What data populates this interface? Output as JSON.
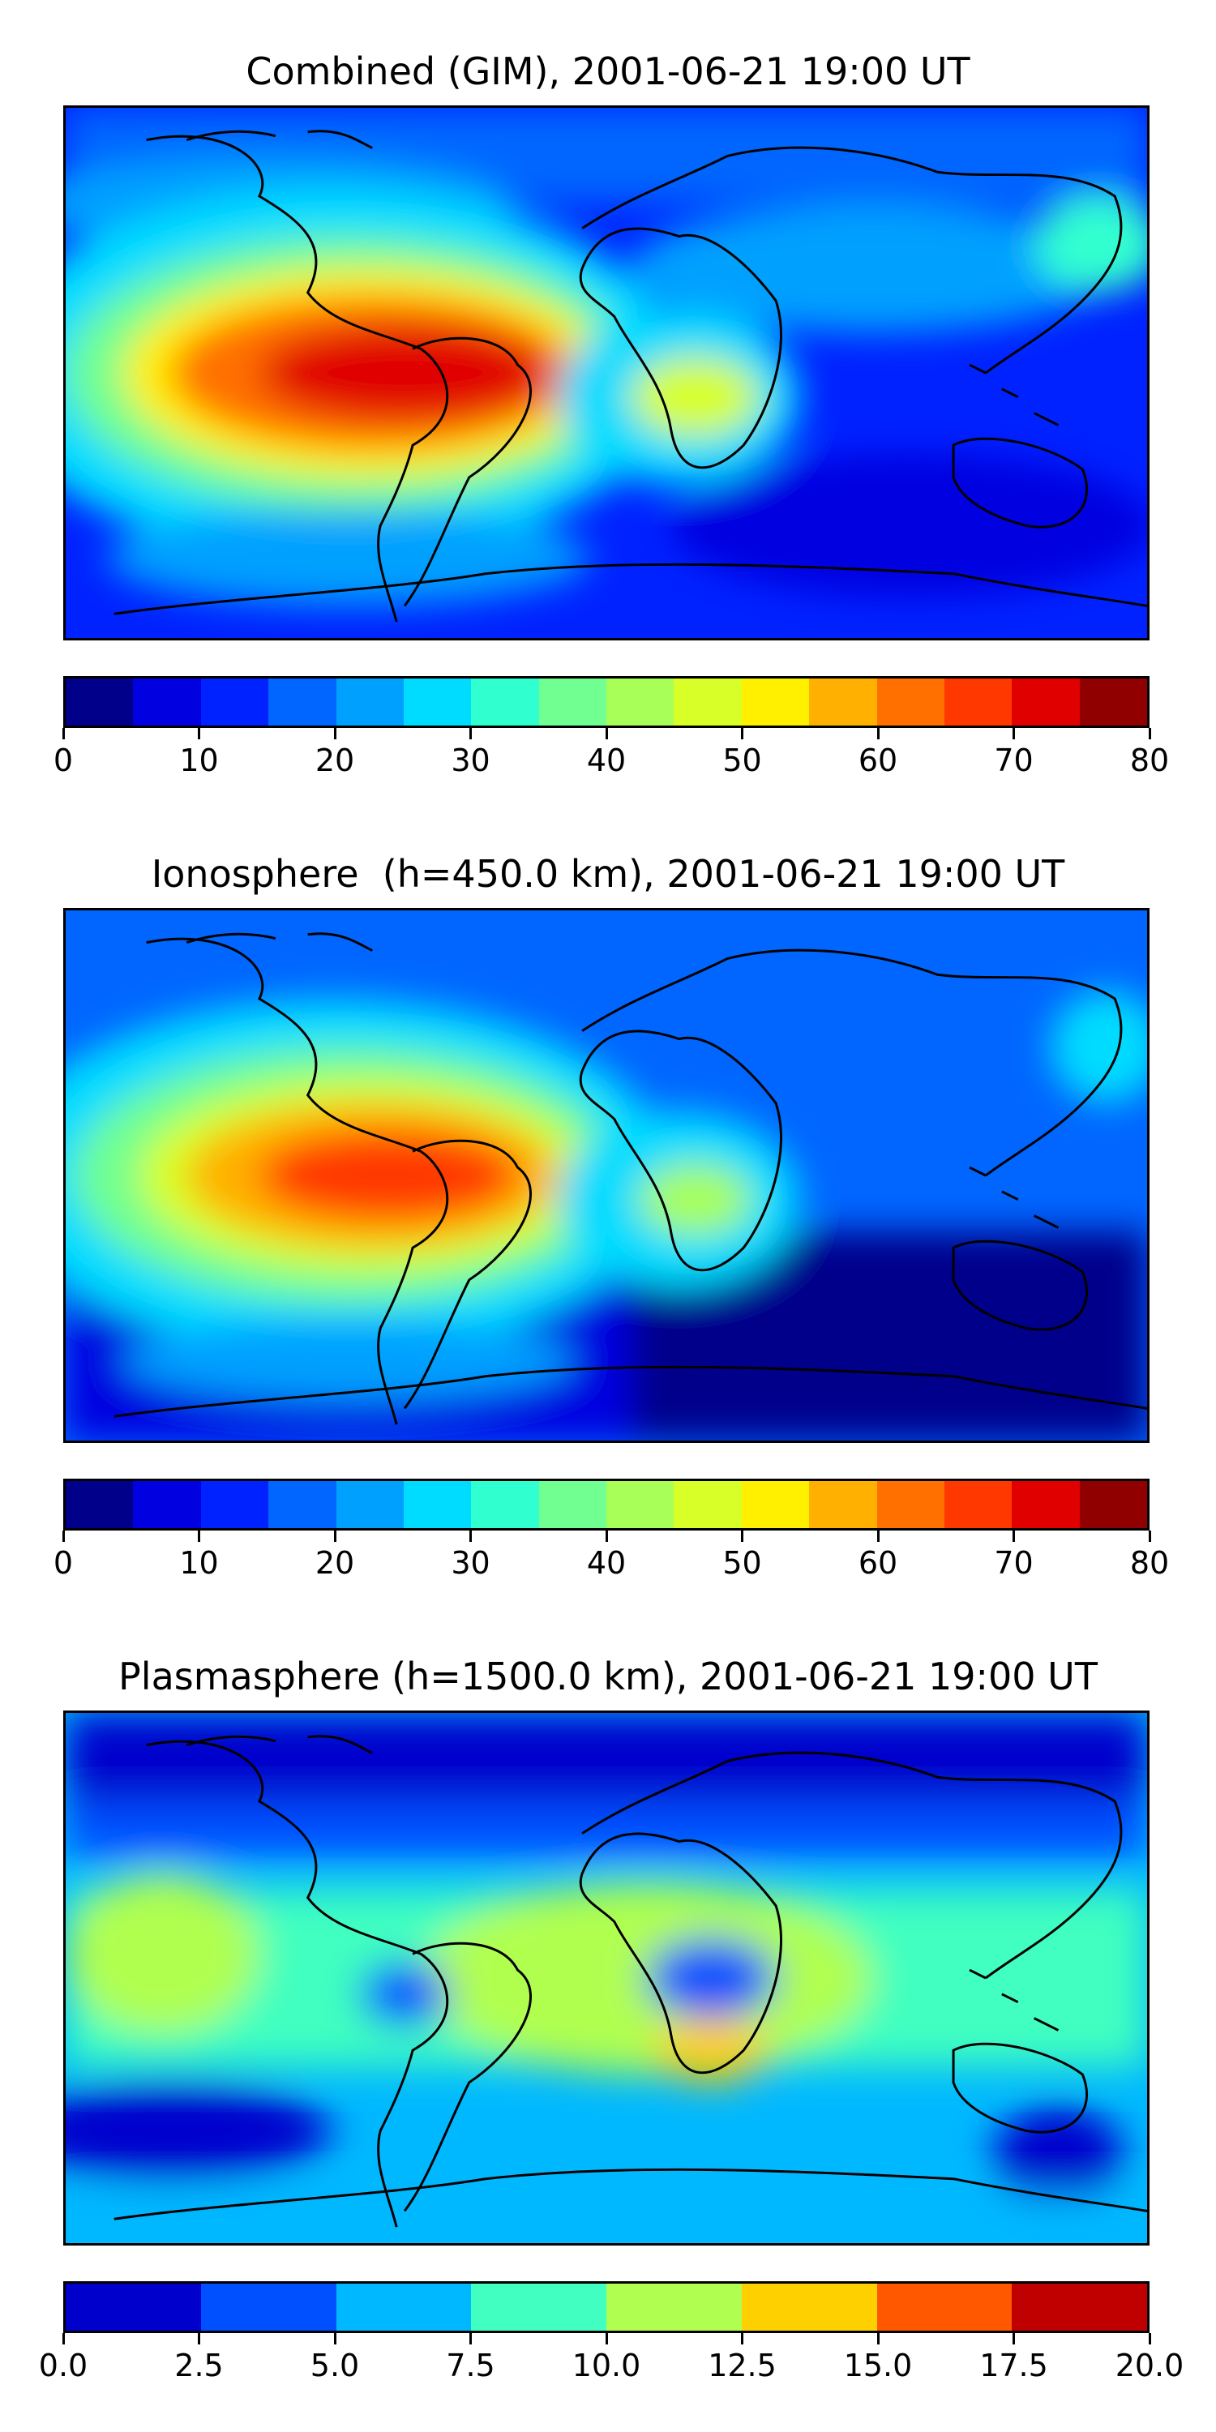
{
  "panels": [
    {
      "title": "Combined (GIM), 2001-06-21 19:00 UT",
      "colorbar": {
        "ticks": [
          "0",
          "10",
          "20",
          "30",
          "40",
          "50",
          "60",
          "70",
          "80"
        ],
        "colors": [
          "#00008b",
          "#0000e0",
          "#0022ff",
          "#0066ff",
          "#00a0ff",
          "#00dcff",
          "#30ffd0",
          "#70ff90",
          "#a8ff58",
          "#d8ff28",
          "#fff000",
          "#ffb000",
          "#ff7000",
          "#ff3800",
          "#e00000",
          "#900000"
        ]
      }
    },
    {
      "title": "Ionosphere  (h=450.0 km), 2001-06-21 19:00 UT",
      "colorbar": {
        "ticks": [
          "0",
          "10",
          "20",
          "30",
          "40",
          "50",
          "60",
          "70",
          "80"
        ],
        "colors": [
          "#00008b",
          "#0000e0",
          "#0022ff",
          "#0066ff",
          "#00a0ff",
          "#00dcff",
          "#30ffd0",
          "#70ff90",
          "#a8ff58",
          "#d8ff28",
          "#fff000",
          "#ffb000",
          "#ff7000",
          "#ff3800",
          "#e00000",
          "#900000"
        ]
      }
    },
    {
      "title": "Plasmasphere (h=1500.0 km), 2001-06-21 19:00 UT",
      "colorbar": {
        "ticks": [
          "0.0",
          "2.5",
          "5.0",
          "7.5",
          "10.0",
          "12.5",
          "15.0",
          "17.5",
          "20.0"
        ],
        "colors": [
          "#0000cc",
          "#0050ff",
          "#00b8ff",
          "#40ffc0",
          "#b0ff50",
          "#ffd000",
          "#ff5800",
          "#c00000"
        ]
      }
    }
  ],
  "chart_data": [
    {
      "type": "heatmap",
      "title": "Combined (GIM), 2001-06-21 19:00 UT",
      "colorbar_range": [
        0,
        80
      ],
      "colorbar_levels": [
        0,
        5,
        10,
        15,
        20,
        25,
        30,
        35,
        40,
        45,
        50,
        55,
        60,
        65,
        70,
        75,
        80
      ],
      "features": [
        {
          "region": "South America / equatorial Atlantic",
          "value_range": [
            60,
            75
          ]
        },
        {
          "region": "Equatorial Africa",
          "value_range": [
            40,
            50
          ]
        },
        {
          "region": "Northern polar cap",
          "value_range": [
            15,
            25
          ]
        },
        {
          "region": "Southern Indian Ocean / Australia",
          "value_range": [
            5,
            15
          ]
        }
      ]
    },
    {
      "type": "heatmap",
      "title": "Ionosphere  (h=450.0 km), 2001-06-21 19:00 UT",
      "colorbar_range": [
        0,
        80
      ],
      "colorbar_levels": [
        0,
        5,
        10,
        15,
        20,
        25,
        30,
        35,
        40,
        45,
        50,
        55,
        60,
        65,
        70,
        75,
        80
      ],
      "features": [
        {
          "region": "South America / equatorial Atlantic",
          "value_range": [
            55,
            70
          ]
        },
        {
          "region": "Equatorial Africa",
          "value_range": [
            35,
            45
          ]
        },
        {
          "region": "Southern Indian Ocean / Australia",
          "value_range": [
            0,
            10
          ]
        }
      ]
    },
    {
      "type": "heatmap",
      "title": "Plasmasphere (h=1500.0 km), 2001-06-21 19:00 UT",
      "colorbar_range": [
        0.0,
        20.0
      ],
      "colorbar_levels": [
        0.0,
        2.5,
        5.0,
        7.5,
        10.0,
        12.5,
        15.0,
        17.5,
        20.0
      ],
      "features": [
        {
          "region": "Northern high latitudes",
          "value_range": [
            0.0,
            2.5
          ]
        },
        {
          "region": "Equatorial band",
          "value_range": [
            7.5,
            12.5
          ]
        },
        {
          "region": "Southern Africa",
          "value_range": [
            12.5,
            15.0
          ]
        },
        {
          "region": "East Africa",
          "value_range": [
            2.5,
            5.0
          ]
        },
        {
          "region": "South Pacific",
          "value_range": [
            0.0,
            2.5
          ]
        }
      ]
    }
  ]
}
